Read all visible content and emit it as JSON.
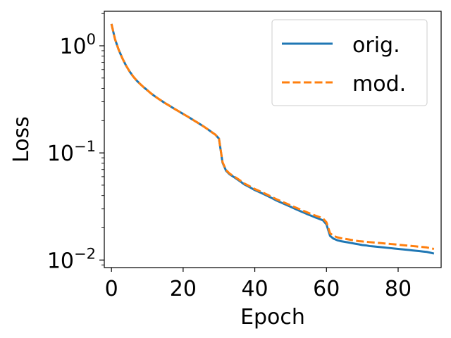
{
  "chart_data": {
    "type": "line",
    "xlabel": "Epoch",
    "ylabel": "Loss",
    "xlim": [
      -2,
      92
    ],
    "ylim": [
      0.0085,
      2.1
    ],
    "yscale": "log",
    "xticks": [
      0,
      20,
      40,
      60,
      80
    ],
    "yticks": [
      {
        "value": 1,
        "base": "10",
        "exp": "0"
      },
      {
        "value": 0.1,
        "base": "10",
        "exp": "−1"
      },
      {
        "value": 0.01,
        "base": "10",
        "exp": "−2"
      }
    ],
    "grid": false,
    "legend_position": "top-right",
    "x": [
      0,
      1,
      2,
      3,
      4,
      5,
      6,
      7,
      8,
      9,
      10,
      11,
      12,
      13,
      14,
      15,
      16,
      17,
      18,
      19,
      20,
      21,
      22,
      23,
      24,
      25,
      26,
      27,
      28,
      29,
      30,
      31,
      32,
      33,
      34,
      35,
      36,
      37,
      38,
      39,
      40,
      41,
      42,
      43,
      44,
      45,
      46,
      47,
      48,
      49,
      50,
      51,
      52,
      53,
      54,
      55,
      56,
      57,
      58,
      59,
      60,
      61,
      62,
      63,
      64,
      65,
      66,
      67,
      68,
      69,
      70,
      71,
      72,
      73,
      74,
      75,
      76,
      77,
      78,
      79,
      80,
      81,
      82,
      83,
      84,
      85,
      86,
      87,
      88,
      89,
      90
    ],
    "series": [
      {
        "name": "orig.",
        "color": "#1f77b4",
        "dash": "solid",
        "values": [
          1.6,
          1.15,
          0.92,
          0.77,
          0.66,
          0.58,
          0.52,
          0.475,
          0.44,
          0.41,
          0.385,
          0.36,
          0.34,
          0.322,
          0.306,
          0.291,
          0.278,
          0.265,
          0.253,
          0.242,
          0.231,
          0.221,
          0.211,
          0.201,
          0.192,
          0.183,
          0.174,
          0.165,
          0.156,
          0.148,
          0.136,
          0.081,
          0.068,
          0.063,
          0.06,
          0.057,
          0.054,
          0.051,
          0.049,
          0.047,
          0.045,
          0.0435,
          0.042,
          0.0405,
          0.039,
          0.0375,
          0.036,
          0.0348,
          0.0336,
          0.0325,
          0.0314,
          0.0303,
          0.0293,
          0.0283,
          0.0274,
          0.0265,
          0.0257,
          0.0249,
          0.0242,
          0.0235,
          0.0215,
          0.0168,
          0.0158,
          0.0153,
          0.015,
          0.0148,
          0.0146,
          0.0144,
          0.0142,
          0.014,
          0.0138,
          0.0137,
          0.0135,
          0.0134,
          0.0133,
          0.0132,
          0.0131,
          0.013,
          0.0129,
          0.0128,
          0.0127,
          0.0126,
          0.0125,
          0.0124,
          0.0123,
          0.0122,
          0.0121,
          0.012,
          0.0119,
          0.0117,
          0.0115
        ]
      },
      {
        "name": "mod.",
        "color": "#ff7f0e",
        "dash": "dashed",
        "values": [
          1.6,
          1.15,
          0.92,
          0.77,
          0.66,
          0.58,
          0.52,
          0.475,
          0.44,
          0.41,
          0.385,
          0.36,
          0.34,
          0.322,
          0.306,
          0.291,
          0.278,
          0.265,
          0.253,
          0.242,
          0.231,
          0.221,
          0.211,
          0.201,
          0.192,
          0.183,
          0.174,
          0.165,
          0.156,
          0.148,
          0.136,
          0.082,
          0.069,
          0.064,
          0.061,
          0.058,
          0.055,
          0.052,
          0.05,
          0.048,
          0.046,
          0.0445,
          0.043,
          0.0415,
          0.04,
          0.0385,
          0.037,
          0.0358,
          0.0346,
          0.0335,
          0.0324,
          0.0313,
          0.0303,
          0.0293,
          0.0284,
          0.0275,
          0.0267,
          0.0259,
          0.0252,
          0.0245,
          0.0225,
          0.0178,
          0.0168,
          0.0163,
          0.016,
          0.0158,
          0.0156,
          0.0154,
          0.0152,
          0.015,
          0.0149,
          0.0148,
          0.0147,
          0.0146,
          0.0145,
          0.0144,
          0.0143,
          0.0142,
          0.0141,
          0.014,
          0.0139,
          0.0138,
          0.0137,
          0.0136,
          0.0135,
          0.0134,
          0.0133,
          0.0132,
          0.0131,
          0.0129,
          0.0127
        ]
      }
    ]
  }
}
